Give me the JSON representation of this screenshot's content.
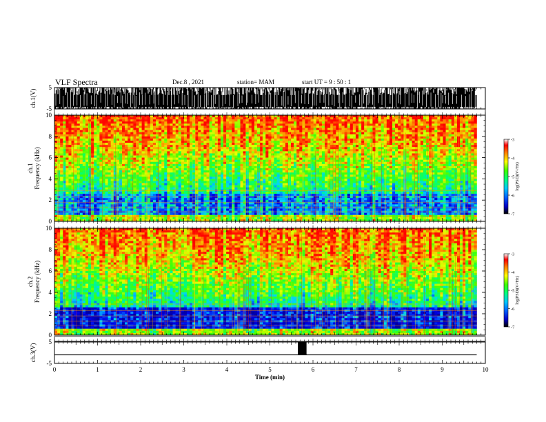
{
  "header": {
    "title": "VLF Spectra",
    "date": "Dec.8 , 2021",
    "station": "station= MAM",
    "start": "start UT =  9 : 50 : 1"
  },
  "chart_data": [
    {
      "type": "line",
      "panel": "waveform-ch1",
      "ylabel": "ch.1(V)",
      "ylim": [
        -5,
        5
      ],
      "yticks": [
        "5",
        "-5"
      ],
      "xlim": [
        0,
        10
      ]
    },
    {
      "type": "heatmap",
      "panel": "spectrogram-ch1",
      "ylabel_line1": "ch.1",
      "ylabel_line2": "Frequency (kHz)",
      "ylim": [
        0,
        10
      ],
      "yticks": [
        "10",
        "8",
        "6",
        "4",
        "2",
        "0"
      ],
      "xlim": [
        0,
        10
      ],
      "colorbar": {
        "label": "log(PSD)(V²/Hz)",
        "min": -7,
        "max": -3,
        "ticks": [
          "-3",
          "-4",
          "-5",
          "-6",
          "-7"
        ]
      }
    },
    {
      "type": "heatmap",
      "panel": "spectrogram-ch2",
      "ylabel_line1": "ch.2",
      "ylabel_line2": "Frequency (kHz)",
      "ylim": [
        0,
        10
      ],
      "yticks": [
        "10",
        "8",
        "6",
        "4",
        "2",
        "0"
      ],
      "xlim": [
        0,
        10
      ],
      "colorbar": {
        "label": "log(PSD)(V²/Hz)",
        "min": -7,
        "max": -3,
        "ticks": [
          "-3",
          "-4",
          "-5",
          "-6",
          "-7"
        ]
      }
    },
    {
      "type": "line",
      "panel": "waveform-ch3",
      "ylabel": "ch.3(V)",
      "ylim": [
        -5,
        5
      ],
      "yticks": [
        "5",
        "-5"
      ],
      "xlim": [
        0,
        10
      ],
      "xlabel": "Time (min)",
      "xticks": [
        "0",
        "1",
        "2",
        "3",
        "4",
        "5",
        "6",
        "7",
        "8",
        "9",
        "10"
      ],
      "baseline": -1,
      "pulse": {
        "x_start": 5.65,
        "x_end": 5.85,
        "y_low": -1,
        "y_high": 5
      },
      "data_end": 9.8
    }
  ]
}
